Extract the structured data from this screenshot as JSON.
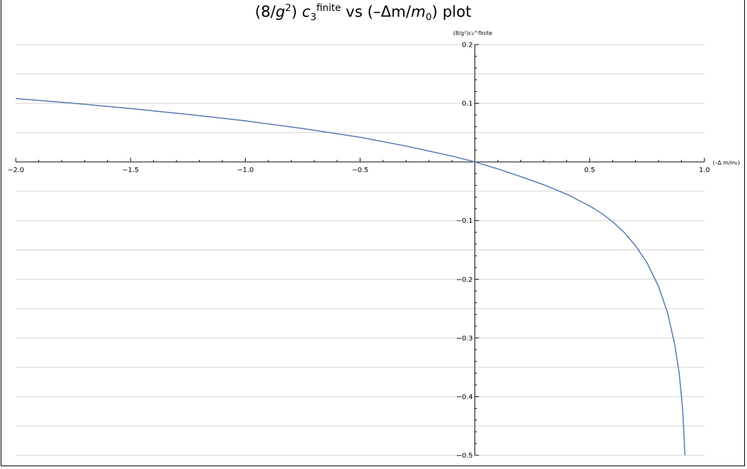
{
  "chart_data": {
    "type": "line",
    "title": "(8/g²) c₃^finite vs (−Δm/m₀) plot",
    "title_parts": {
      "prefix": "(8/",
      "g": "g",
      "g_exp": "2",
      "mid": ") ",
      "c": "c",
      "c_sub": "3",
      "c_sup": "finite",
      "suffix": " vs (–Δm/",
      "m": "m",
      "m_sub": "0",
      "end": ") plot"
    },
    "xlabel": "(–Δ m/m₀)",
    "ylabel": "(8/g²)c₃^finite",
    "xlim": [
      -2.0,
      1.0
    ],
    "ylim": [
      -0.5,
      0.2
    ],
    "x_ticks": [
      -2.0,
      -1.5,
      -1.0,
      -0.5,
      0.5,
      1.0
    ],
    "x_tick_labels": [
      "−2.0",
      "−1.5",
      "−1.0",
      "−0.5",
      "0.5",
      "1.0"
    ],
    "y_ticks": [
      0.2,
      0.1,
      -0.1,
      -0.2,
      -0.3,
      -0.4,
      -0.5
    ],
    "y_tick_labels": [
      "0.2",
      "0.1",
      "−0.1",
      "−0.2",
      "−0.3",
      "−0.4",
      "−0.5"
    ],
    "grid": true,
    "grid_lines_y": [
      0.2,
      0.15,
      0.1,
      0.05,
      -0.05,
      -0.1,
      -0.15,
      -0.2,
      -0.25,
      -0.3,
      -0.35,
      -0.4,
      -0.45,
      -0.5
    ],
    "line_color": "#5a7fb5",
    "series": [
      {
        "x": [
          -2.0,
          -1.75,
          -1.5,
          -1.25,
          -1.0,
          -0.75,
          -0.5,
          -0.3,
          -0.1,
          0.0,
          0.1,
          0.2,
          0.3,
          0.4,
          0.5,
          0.55,
          0.6,
          0.65,
          0.7,
          0.75,
          0.8,
          0.84,
          0.87,
          0.89,
          0.905,
          0.915
        ],
        "y": [
          0.108,
          0.1,
          0.091,
          0.081,
          0.07,
          0.057,
          0.042,
          0.027,
          0.01,
          0.0,
          -0.012,
          -0.025,
          -0.039,
          -0.055,
          -0.075,
          -0.087,
          -0.102,
          -0.12,
          -0.143,
          -0.172,
          -0.212,
          -0.258,
          -0.31,
          -0.36,
          -0.42,
          -0.5
        ]
      }
    ]
  }
}
